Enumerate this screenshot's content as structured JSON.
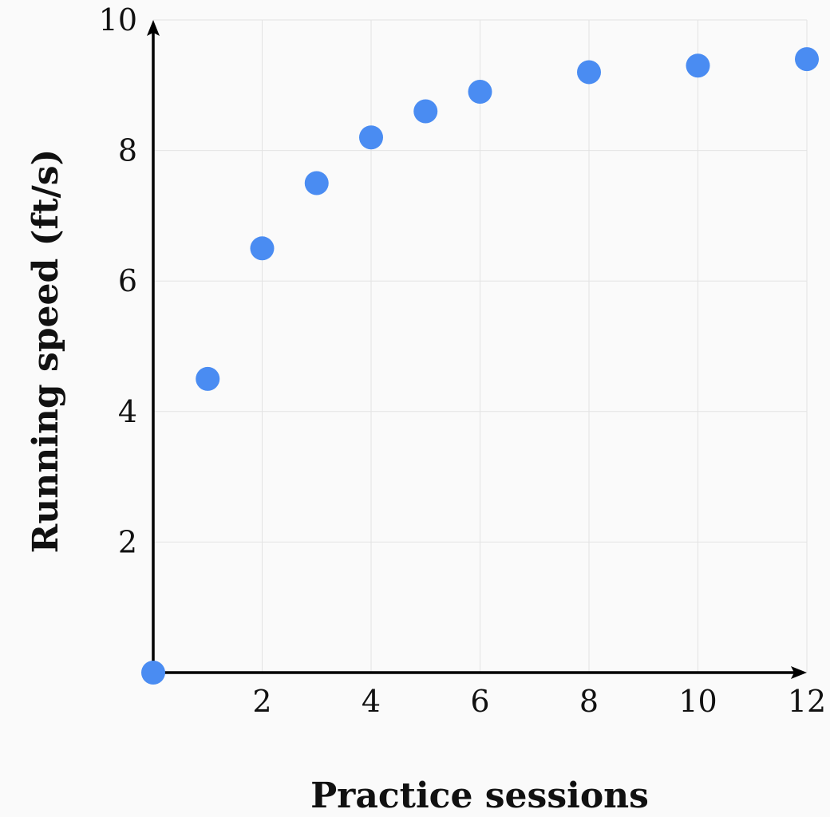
{
  "chart_data": {
    "type": "scatter",
    "title": "",
    "xlabel": "Practice sessions",
    "ylabel": "Running speed (ft/s)",
    "xlim": [
      0,
      12
    ],
    "ylim": [
      0,
      10
    ],
    "xticks": [
      2,
      4,
      6,
      8,
      10,
      12
    ],
    "yticks": [
      2,
      4,
      6,
      8,
      10
    ],
    "grid": true,
    "series": [
      {
        "name": "Running speed",
        "color": "#4a8cf2",
        "points": [
          {
            "x": 0,
            "y": 0
          },
          {
            "x": 1,
            "y": 4.5
          },
          {
            "x": 2,
            "y": 6.5
          },
          {
            "x": 3,
            "y": 7.5
          },
          {
            "x": 4,
            "y": 8.2
          },
          {
            "x": 5,
            "y": 8.6
          },
          {
            "x": 6,
            "y": 8.9
          },
          {
            "x": 8,
            "y": 9.2
          },
          {
            "x": 10,
            "y": 9.3
          },
          {
            "x": 12,
            "y": 9.4
          }
        ]
      }
    ]
  }
}
